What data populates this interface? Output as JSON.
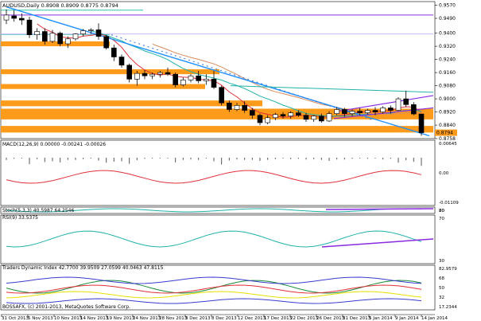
{
  "chart_data": {
    "type": "candlestick",
    "price_panel": {
      "title": "AUDUSD,Daily  0.8908 0.8909 0.8775 0.8794",
      "ylim": [
        0.8758,
        0.9592
      ],
      "price_ticks": [
        "0.9570",
        "0.9490",
        "0.9400",
        "0.9320",
        "0.9240",
        "0.9160",
        "0.9080",
        "0.9000",
        "0.8920",
        "0.8840",
        "0.8758"
      ],
      "last_price": "0.8794",
      "candles": [
        [
          0.948,
          0.9545,
          0.9455,
          0.951
        ],
        [
          0.9505,
          0.954,
          0.947,
          0.949
        ],
        [
          0.949,
          0.952,
          0.945,
          0.948
        ],
        [
          0.948,
          0.95,
          0.937,
          0.939
        ],
        [
          0.939,
          0.943,
          0.936,
          0.941
        ],
        [
          0.941,
          0.943,
          0.933,
          0.935
        ],
        [
          0.935,
          0.942,
          0.934,
          0.94
        ],
        [
          0.94,
          0.941,
          0.932,
          0.9335
        ],
        [
          0.9335,
          0.938,
          0.931,
          0.9365
        ],
        [
          0.9365,
          0.94,
          0.9355,
          0.9395
        ],
        [
          0.9395,
          0.9425,
          0.938,
          0.9415
        ],
        [
          0.9415,
          0.943,
          0.9395,
          0.942
        ],
        [
          0.942,
          0.946,
          0.936,
          0.938
        ],
        [
          0.938,
          0.939,
          0.93,
          0.931
        ],
        [
          0.931,
          0.933,
          0.923,
          0.9255
        ],
        [
          0.9255,
          0.927,
          0.919,
          0.9205
        ],
        [
          0.9205,
          0.9215,
          0.91,
          0.912
        ],
        [
          0.912,
          0.917,
          0.908,
          0.9155
        ],
        [
          0.9155,
          0.9175,
          0.912,
          0.914
        ],
        [
          0.914,
          0.916,
          0.912,
          0.915
        ],
        [
          0.915,
          0.917,
          0.913,
          0.916
        ],
        [
          0.916,
          0.919,
          0.914,
          0.915
        ],
        [
          0.915,
          0.916,
          0.907,
          0.9085
        ],
        [
          0.9085,
          0.913,
          0.9075,
          0.9115
        ],
        [
          0.9115,
          0.915,
          0.91,
          0.914
        ],
        [
          0.914,
          0.917,
          0.9095,
          0.911
        ],
        [
          0.911,
          0.915,
          0.9085,
          0.912
        ],
        [
          0.912,
          0.917,
          0.906,
          0.907
        ],
        [
          0.907,
          0.908,
          0.896,
          0.8975
        ],
        [
          0.8975,
          0.899,
          0.892,
          0.8935
        ],
        [
          0.8935,
          0.8975,
          0.8925,
          0.896
        ],
        [
          0.896,
          0.8985,
          0.8915,
          0.893
        ],
        [
          0.893,
          0.8945,
          0.888,
          0.89
        ],
        [
          0.89,
          0.891,
          0.884,
          0.8855
        ],
        [
          0.8855,
          0.89,
          0.8845,
          0.8885
        ],
        [
          0.8885,
          0.8915,
          0.887,
          0.8905
        ],
        [
          0.8905,
          0.892,
          0.888,
          0.8895
        ],
        [
          0.8895,
          0.8925,
          0.888,
          0.8915
        ],
        [
          0.8915,
          0.893,
          0.889,
          0.89
        ],
        [
          0.89,
          0.8915,
          0.886,
          0.8875
        ],
        [
          0.8875,
          0.89,
          0.886,
          0.8895
        ],
        [
          0.8895,
          0.891,
          0.8855,
          0.8865
        ],
        [
          0.8865,
          0.8925,
          0.886,
          0.891
        ],
        [
          0.891,
          0.895,
          0.89,
          0.8935
        ],
        [
          0.8935,
          0.8945,
          0.889,
          0.891
        ],
        [
          0.891,
          0.8935,
          0.8895,
          0.8925
        ],
        [
          0.8925,
          0.8945,
          0.89,
          0.8915
        ],
        [
          0.8915,
          0.894,
          0.8905,
          0.893
        ],
        [
          0.893,
          0.895,
          0.89,
          0.892
        ],
        [
          0.892,
          0.8955,
          0.891,
          0.8945
        ],
        [
          0.8945,
          0.896,
          0.891,
          0.893
        ],
        [
          0.893,
          0.901,
          0.8925,
          0.9
        ],
        [
          0.9,
          0.905,
          0.895,
          0.8965
        ],
        [
          0.8965,
          0.898,
          0.89,
          0.8908
        ],
        [
          0.8908,
          0.8909,
          0.8775,
          0.8794
        ]
      ]
    },
    "macd_panel": {
      "title": "MACD(12,26,9) 0.00000 -0.00241 -0.00026",
      "ticks": [
        "0.00645",
        "0.00",
        "-0.01109"
      ]
    },
    "stoch_panel": {
      "title": "Stoch(5,3,3) 40.5987 64.2546",
      "ticks": [
        "80",
        "20"
      ]
    },
    "rsi_panel": {
      "title": "RSI(9) 33.5375",
      "ticks": [
        "70",
        "30"
      ]
    },
    "tdi_panel": {
      "title": "Traders Dynamic Index 42.7700 39.9509 27.0599 40.0463 47.8115",
      "ticks": [
        "82.9579",
        "68",
        "50",
        "32",
        "17.2344"
      ]
    },
    "copyright": "BOSSAFX, (c) 2001-2013, MetaQuotes Software Corp.",
    "x_labels": [
      "31 Oct 2013",
      "5 Nov 2013",
      "10 Nov 2013",
      "14 Nov 2013",
      "19 Nov 2013",
      "24 Nov 2013",
      "28 Nov 2013",
      "3 Dec 2013",
      "8 Dec 2013",
      "12 Dec 2013",
      "17 Dec 2013",
      "22 Dec 2013",
      "26 Dec 2013",
      "31 Dec 2013",
      "5 Jan 2014",
      "9 Jan 2014",
      "14 Jan 2014"
    ],
    "colors": {
      "support": "#ff9b1a",
      "bull": "#ffffff",
      "bear": "#000000",
      "price_box": "#ff9b1a"
    }
  }
}
